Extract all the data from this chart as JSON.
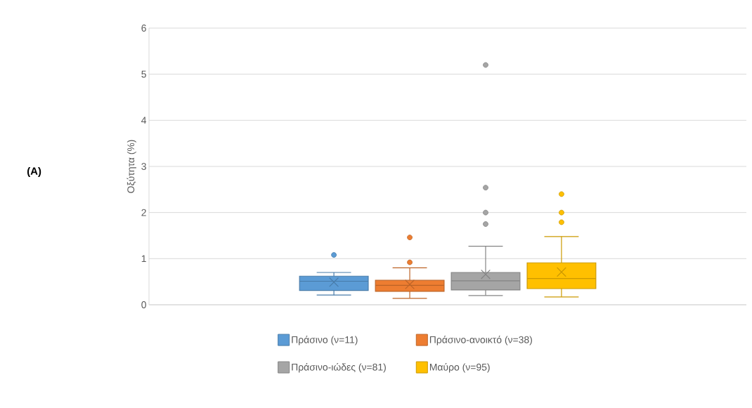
{
  "chart_data": {
    "type": "box",
    "ylabel": "Οξύτητα (%)",
    "annotations": [
      "(A)"
    ],
    "categories": [
      null
    ],
    "ylim": [
      0,
      6
    ],
    "yticks": [
      0,
      1,
      2,
      3,
      4,
      5,
      6
    ],
    "grid": "y",
    "legend": "bottom",
    "series": [
      {
        "name": "Πράσινο (ν=11)",
        "color": "#5b9bd5",
        "boxes": [
          {
            "low": 0.21,
            "q1": 0.31,
            "median": 0.51,
            "q3": 0.62,
            "high": 0.7,
            "mean": 0.49,
            "outliers": [
              1.08
            ]
          }
        ]
      },
      {
        "name": "Πράσινο-ανοικτό (ν=38)",
        "color": "#ed7d31",
        "boxes": [
          {
            "low": 0.14,
            "q1": 0.29,
            "median": 0.42,
            "q3": 0.53,
            "high": 0.8,
            "mean": 0.44,
            "outliers": [
              0.92,
              1.46
            ]
          }
        ]
      },
      {
        "name": "Πράσινο-ιώδες (ν=81)",
        "color": "#a5a5a5",
        "boxes": [
          {
            "low": 0.2,
            "q1": 0.32,
            "median": 0.52,
            "q3": 0.7,
            "high": 1.27,
            "mean": 0.66,
            "outliers": [
              1.75,
              2.0,
              2.54,
              5.2
            ]
          }
        ]
      },
      {
        "name": "Μαύρο (ν=95)",
        "color": "#ffc000",
        "boxes": [
          {
            "low": 0.17,
            "q1": 0.35,
            "median": 0.57,
            "q3": 0.91,
            "high": 1.48,
            "mean": 0.71,
            "outliers": [
              1.79,
              2.0,
              2.4
            ]
          }
        ]
      }
    ]
  }
}
